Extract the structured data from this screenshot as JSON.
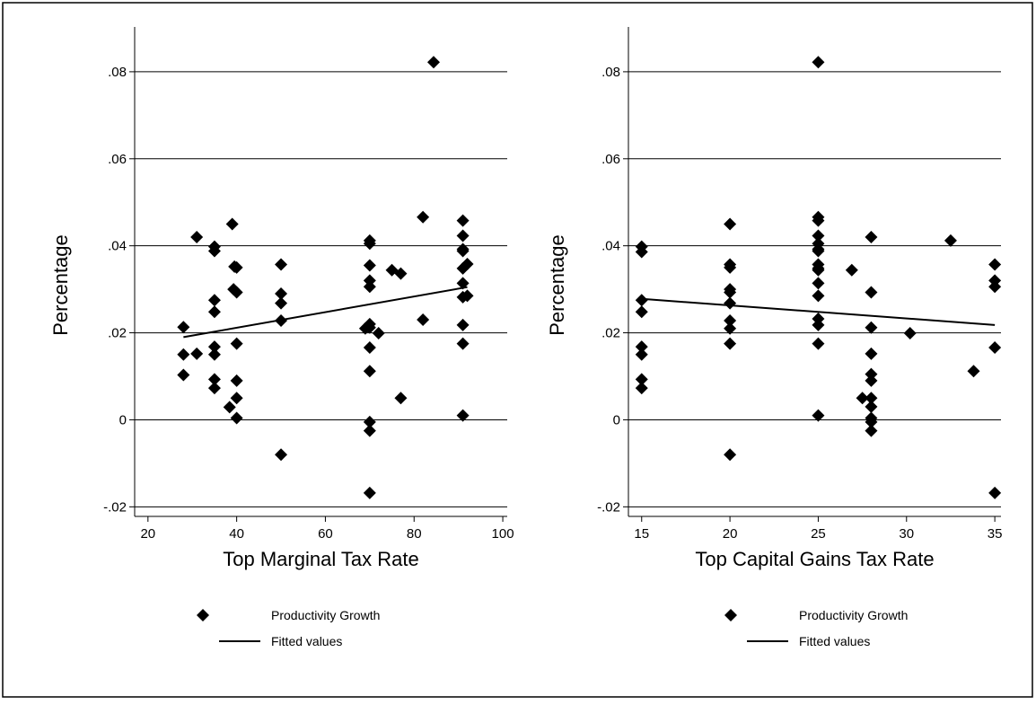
{
  "chart_data": [
    {
      "type": "scatter",
      "xlabel": "Top Marginal Tax Rate",
      "ylabel": "Percentage",
      "xlim": [
        17,
        101
      ],
      "ylim": [
        -0.0222,
        0.0903
      ],
      "xticks": [
        20,
        40,
        60,
        80,
        100
      ],
      "yticks": [
        {
          "value": -0.02,
          "label": "-.02"
        },
        0,
        {
          "value": 0.02,
          "label": ".02"
        },
        {
          "value": 0.04,
          "label": ".04"
        },
        {
          "value": 0.06,
          "label": ".06"
        },
        {
          "value": 0.08,
          "label": ".08"
        }
      ],
      "grid": true,
      "series": [
        {
          "name": "Productivity Growth",
          "type": "scatter",
          "color": "#000000",
          "x": [
            28,
            28,
            28,
            31,
            31,
            35,
            35,
            35,
            35,
            35,
            35,
            35,
            35,
            38.4,
            39,
            39.5,
            40,
            39.3,
            40,
            40,
            40,
            40,
            40,
            50,
            50,
            50,
            50,
            50,
            69,
            70,
            70,
            70,
            70,
            70,
            70,
            70,
            70,
            70,
            70,
            70,
            70,
            72,
            75,
            77,
            77,
            82,
            82,
            84.4,
            91,
            91,
            91,
            91,
            91,
            91,
            91,
            91,
            91,
            91,
            92,
            92
          ],
          "values": [
            0.0213,
            0.015,
            0.0103,
            0.0152,
            0.042,
            0.0398,
            0.0388,
            0.0275,
            0.0248,
            0.0168,
            0.015,
            0.0093,
            0.0073,
            0.0029,
            0.045,
            0.0352,
            0.035,
            0.03,
            0.0293,
            0.0175,
            0.009,
            0.005,
            0.0004,
            0.0357,
            0.029,
            0.0268,
            0.0228,
            -0.008,
            0.021,
            0.0412,
            0.0405,
            0.0355,
            0.032,
            0.0306,
            0.022,
            0.0212,
            0.0166,
            0.0112,
            -0.0005,
            -0.0025,
            -0.0168,
            0.0199,
            0.0344,
            0.0336,
            0.005,
            0.0466,
            0.023,
            0.0822,
            0.0458,
            0.0423,
            0.0392,
            0.0388,
            0.0348,
            0.0314,
            0.0282,
            0.0218,
            0.0175,
            0.001,
            0.0358,
            0.0285
          ]
        },
        {
          "name": "Fitted values",
          "type": "line",
          "color": "#000000",
          "x": [
            28,
            92
          ],
          "values": [
            0.019,
            0.0305
          ]
        }
      ]
    },
    {
      "type": "scatter",
      "xlabel": "Top Capital Gains Tax Rate",
      "ylabel": "Percentage",
      "xlim": [
        14.25,
        35.35
      ],
      "ylim": [
        -0.0222,
        0.0903
      ],
      "xticks": [
        15,
        20,
        25,
        30,
        35
      ],
      "yticks": [
        {
          "value": -0.02,
          "label": "-.02"
        },
        0,
        {
          "value": 0.02,
          "label": ".02"
        },
        {
          "value": 0.04,
          "label": ".04"
        },
        {
          "value": 0.06,
          "label": ".06"
        },
        {
          "value": 0.08,
          "label": ".08"
        }
      ],
      "grid": true,
      "series": [
        {
          "name": "Productivity Growth",
          "type": "scatter",
          "color": "#000000",
          "x": [
            15,
            15,
            15,
            15,
            15,
            15,
            15,
            15,
            20,
            20,
            20,
            20,
            20,
            20,
            20,
            20,
            20,
            20,
            25,
            25,
            25,
            25,
            25,
            25,
            25,
            25,
            25,
            25,
            25,
            25,
            25,
            25,
            25,
            25,
            26.9,
            27.5,
            28,
            28,
            28,
            28,
            28,
            28,
            28,
            28,
            28,
            28,
            28,
            30.2,
            32.5,
            33.8,
            35,
            35,
            35,
            35,
            35
          ],
          "values": [
            0.0398,
            0.0386,
            0.0275,
            0.0248,
            0.0168,
            0.015,
            0.0093,
            0.0073,
            0.045,
            0.0357,
            0.035,
            0.03,
            0.0293,
            0.0268,
            0.0228,
            0.021,
            0.0175,
            -0.008,
            0.0822,
            0.0466,
            0.0458,
            0.0423,
            0.0405,
            0.0392,
            0.0388,
            0.0357,
            0.0348,
            0.0344,
            0.0314,
            0.0285,
            0.0232,
            0.0218,
            0.0175,
            0.001,
            0.0344,
            0.005,
            0.042,
            0.0293,
            0.0212,
            0.0152,
            0.0105,
            0.009,
            0.005,
            0.003,
            0.0004,
            -0.0005,
            -0.0025,
            0.0199,
            0.0412,
            0.0112,
            0.0357,
            0.032,
            0.0306,
            0.0166,
            -0.0168
          ]
        },
        {
          "name": "Fitted values",
          "type": "line",
          "color": "#000000",
          "x": [
            15,
            35
          ],
          "values": [
            0.0278,
            0.0218
          ]
        }
      ]
    }
  ]
}
